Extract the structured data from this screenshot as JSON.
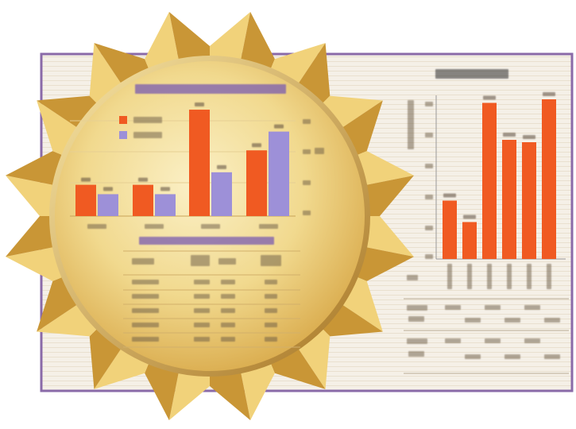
{
  "colors": {
    "orange": "#f05a22",
    "purple": "#9d90d8",
    "gold_light": "#f6e2a0",
    "gold_mid": "#e2b952",
    "gold_dark": "#b5832a",
    "frame": "#8a6aa8",
    "panel": "#f5f0e7"
  },
  "chart_data": [
    {
      "type": "bar",
      "legend": "top-left",
      "grid": true,
      "ylim": [
        0,
        36
      ],
      "series": [
        {
          "color": "#f05a22",
          "values": [
            10,
            10,
            34,
            21
          ]
        },
        {
          "color": "#9d90d8",
          "values": [
            7,
            7,
            14,
            27
          ]
        }
      ]
    },
    {
      "type": "bar",
      "grid": false,
      "ylim": [
        0,
        140
      ],
      "series": [
        {
          "color": "#f05a22",
          "values": [
            49,
            31,
            131,
            100,
            98,
            134
          ]
        }
      ]
    }
  ]
}
